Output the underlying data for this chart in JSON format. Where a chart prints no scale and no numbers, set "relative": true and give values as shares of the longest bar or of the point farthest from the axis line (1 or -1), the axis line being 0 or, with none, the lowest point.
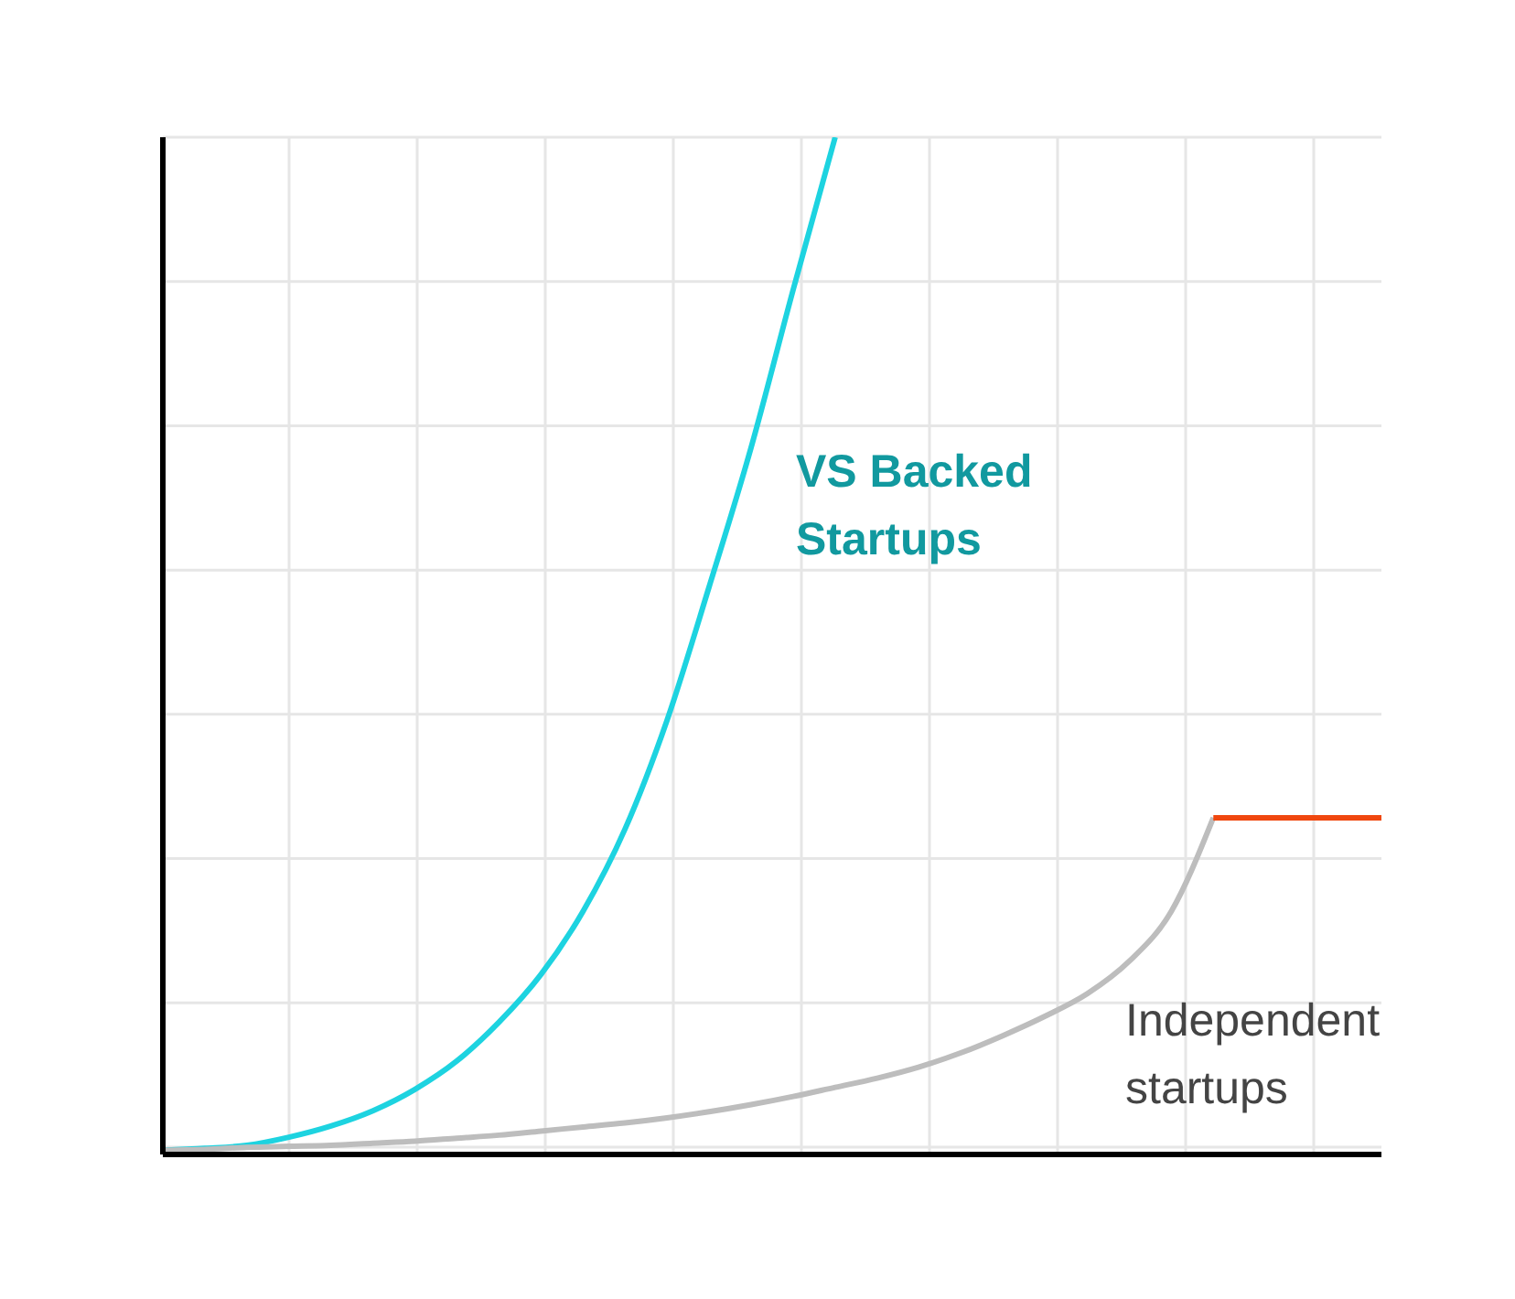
{
  "chart_data": {
    "type": "line",
    "relative": true,
    "grid": true,
    "marker": "none",
    "line_style": "solid",
    "categories": [
      null,
      null,
      null,
      null,
      null,
      null,
      null,
      null,
      null,
      null,
      null,
      null,
      null,
      null,
      null,
      null,
      null,
      null,
      null,
      null,
      null,
      null,
      null,
      null,
      null,
      null,
      null,
      null,
      null,
      null
    ],
    "series": [
      {
        "name": "VS Backed Startups",
        "color": "#1dd3e0",
        "values": [
          0.004,
          0.006,
          0.009,
          0.017,
          0.028,
          0.043,
          0.064,
          0.092,
          0.13,
          0.177,
          0.239,
          0.32,
          0.427,
          0.558,
          0.695,
          0.85,
          1.0,
          null,
          null,
          null,
          null,
          null,
          null,
          null,
          null,
          null,
          null,
          null,
          null,
          null
        ]
      },
      {
        "name": "Independent startups",
        "color": "#bdbdbd",
        "values": [
          0.004,
          0.005,
          0.007,
          0.008,
          0.009,
          0.011,
          0.013,
          0.016,
          0.019,
          0.023,
          0.027,
          0.031,
          0.036,
          0.042,
          0.049,
          0.057,
          0.066,
          0.075,
          0.086,
          0.1,
          0.117,
          0.136,
          0.158,
          0.19,
          0.239,
          0.331,
          null,
          null,
          null,
          null
        ]
      },
      {
        "color": "#f0470f",
        "values": [
          null,
          null,
          null,
          null,
          null,
          null,
          null,
          null,
          null,
          null,
          null,
          null,
          null,
          null,
          null,
          null,
          null,
          null,
          null,
          null,
          null,
          null,
          null,
          null,
          null,
          0.331,
          0.331,
          0.331,
          0.331,
          0.331
        ]
      }
    ]
  }
}
